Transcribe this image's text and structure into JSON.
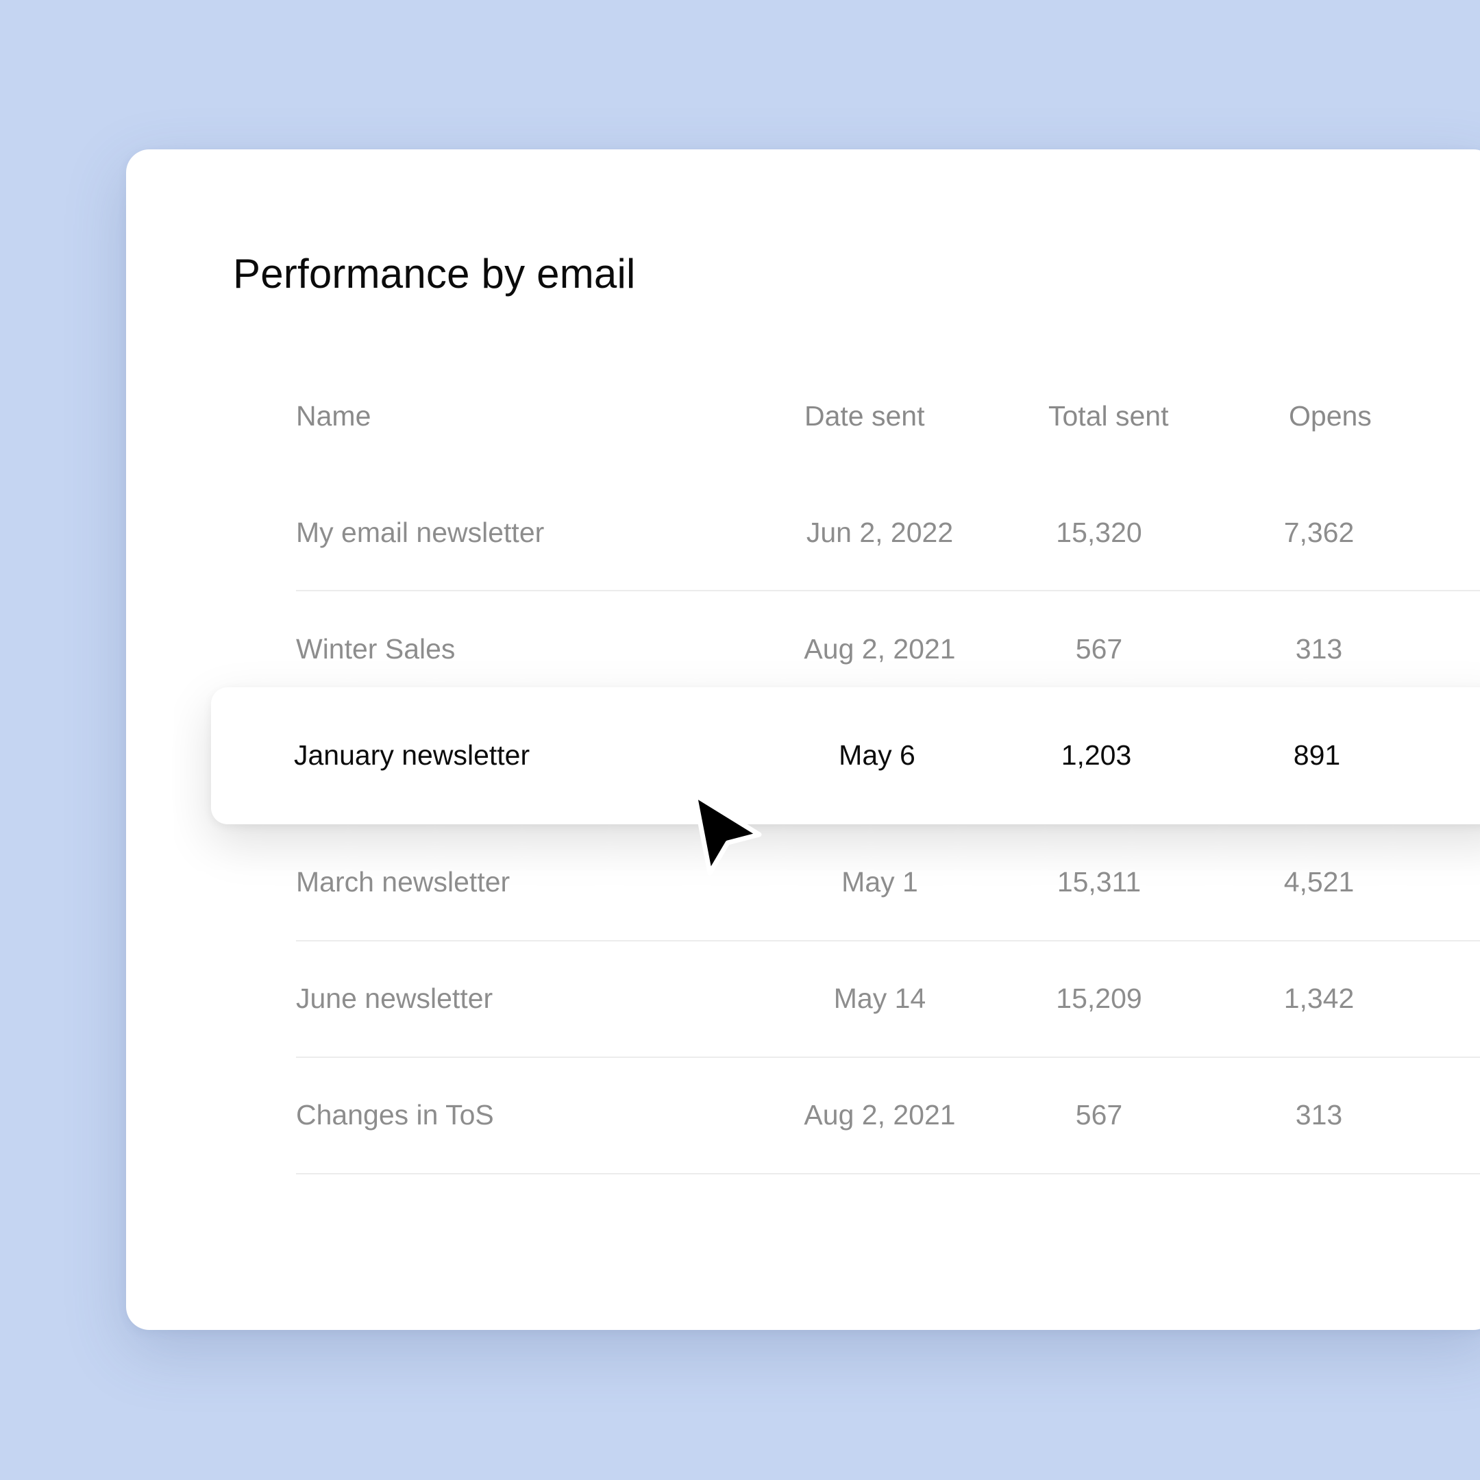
{
  "page": {
    "title": "Performance by email"
  },
  "table": {
    "columns": [
      "Name",
      "Date sent",
      "Total sent",
      "Opens"
    ],
    "rows": [
      {
        "name": "My email newsletter",
        "date_sent": "Jun 2, 2022",
        "total_sent": "15,320",
        "opens": "7,362"
      },
      {
        "name": "Winter Sales",
        "date_sent": "Aug 2, 2021",
        "total_sent": "567",
        "opens": "313"
      },
      {
        "name": "January newsletter",
        "date_sent": "May 6",
        "total_sent": "1,203",
        "opens": "891"
      },
      {
        "name": "March newsletter",
        "date_sent": "May 1",
        "total_sent": "15,311",
        "opens": "4,521"
      },
      {
        "name": "June newsletter",
        "date_sent": "May 14",
        "total_sent": "15,209",
        "opens": "1,342"
      },
      {
        "name": "Changes in ToS",
        "date_sent": "Aug 2, 2021",
        "total_sent": "567",
        "opens": "313"
      }
    ],
    "selected_row_index": 2
  },
  "cursor": {
    "icon": "arrow-pointer-icon"
  },
  "colors": {
    "background": "#c5d5f2",
    "card": "#ffffff",
    "text_primary": "#0b0b0b",
    "text_muted": "#8d8d8d",
    "divider": "#ececec"
  }
}
